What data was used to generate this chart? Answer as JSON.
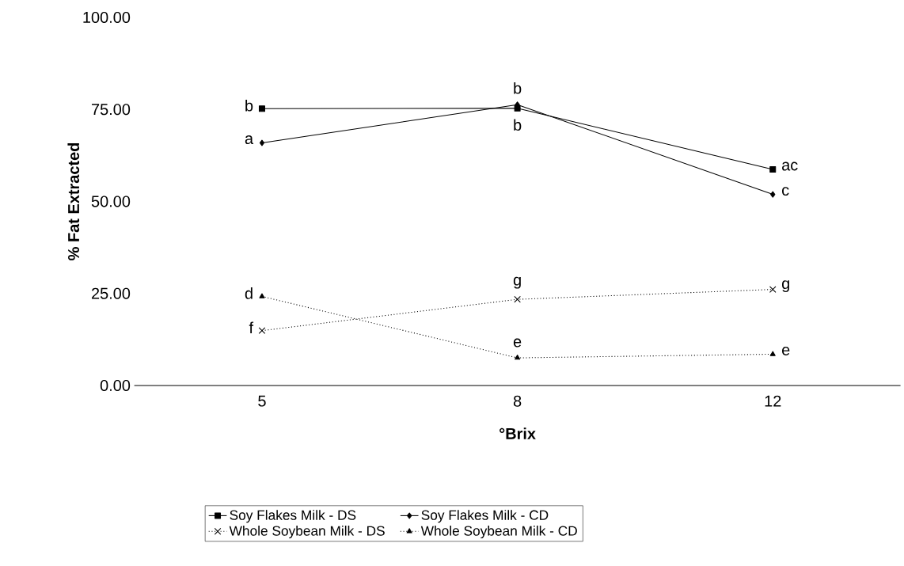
{
  "chart_data": {
    "type": "line",
    "xlabel": "°Brix",
    "ylabel": "% Fat Extracted",
    "categories": [
      "5",
      "8",
      "12"
    ],
    "series": [
      {
        "name": "Soy Flakes Milk - DS",
        "color": "#000000",
        "marker": "square",
        "line_style": "solid",
        "values": [
          75.2,
          75.3,
          58.7
        ]
      },
      {
        "name": "Soy Flakes Milk - CD",
        "color": "#000000",
        "marker": "diamond",
        "line_style": "solid",
        "values": [
          65.9,
          76.3,
          51.9
        ]
      },
      {
        "name": "Whole Soybean Milk - DS",
        "color": "#000000",
        "marker": "cross",
        "line_style": "dotted",
        "values": [
          14.9,
          23.4,
          26.1
        ]
      },
      {
        "name": "Whole Soybean Milk - CD",
        "color": "#000000",
        "marker": "triangle",
        "line_style": "dotted",
        "values": [
          24.2,
          7.5,
          8.5
        ]
      }
    ],
    "ylim": [
      0,
      100
    ],
    "yticks": [
      {
        "value": 0,
        "label": "0.00"
      },
      {
        "value": 25,
        "label": "25.00"
      },
      {
        "value": 50,
        "label": "50.00"
      },
      {
        "value": 75,
        "label": "75.00"
      },
      {
        "value": 100,
        "label": "100.00"
      }
    ],
    "legend": "bottom",
    "annotations": [
      {
        "text": "b",
        "x": "5",
        "y": 75.2
      },
      {
        "text": "a",
        "x": "5",
        "y": 65.9
      },
      {
        "text": "d",
        "x": "5",
        "y": 24.2
      },
      {
        "text": "f",
        "x": "5",
        "y": 14.9
      },
      {
        "text": "b",
        "x": "8",
        "y": 76.3
      },
      {
        "text": "b",
        "x": "8",
        "y": 75.3
      },
      {
        "text": "g",
        "x": "8",
        "y": 23.4
      },
      {
        "text": "e",
        "x": "8",
        "y": 7.5
      },
      {
        "text": "ac",
        "x": "12",
        "y": 58.7
      },
      {
        "text": "c",
        "x": "12",
        "y": 51.9
      },
      {
        "text": "g",
        "x": "12",
        "y": 26.1
      },
      {
        "text": "e",
        "x": "12",
        "y": 8.5
      }
    ]
  }
}
